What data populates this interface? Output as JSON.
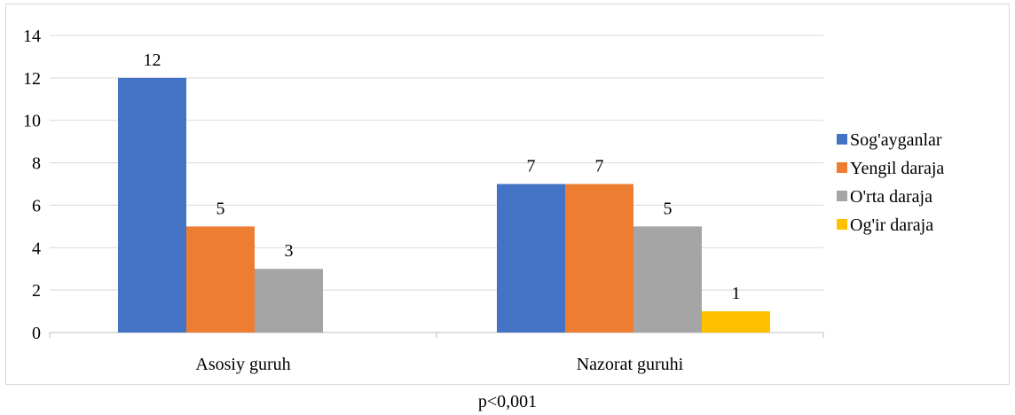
{
  "chart_data": {
    "type": "bar",
    "categories": [
      "Asosiy guruh",
      "Nazorat guruhi"
    ],
    "series": [
      {
        "name": "Sog'ayganlar",
        "values": [
          12,
          7
        ],
        "color": "#4472C4"
      },
      {
        "name": "Yengil daraja",
        "values": [
          5,
          7
        ],
        "color": "#ED7D31"
      },
      {
        "name": "O'rta daraja",
        "values": [
          3,
          5
        ],
        "color": "#A5A5A5"
      },
      {
        "name": "Og'ir daraja",
        "values": [
          null,
          1
        ],
        "color": "#FFC000"
      }
    ],
    "yticks": [
      0,
      2,
      4,
      6,
      8,
      10,
      12,
      14
    ],
    "ylim": [
      0,
      14
    ],
    "grid": true,
    "legend": "right"
  },
  "footnote": "p<0,001"
}
